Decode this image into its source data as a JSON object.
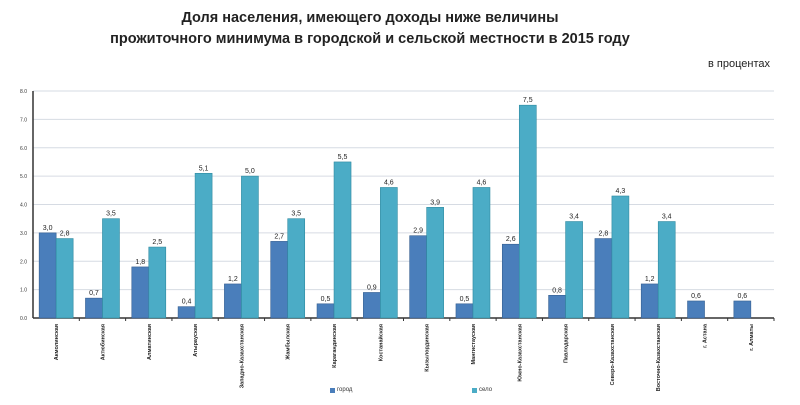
{
  "chart_data": {
    "type": "bar",
    "title": "Доля населения, имеющего доходы ниже величины",
    "subtitle": "прожиточного минимума  в городской  и сельской  местности  в 2015 году",
    "unit_label": "в процентах",
    "ylim": [
      0,
      8
    ],
    "yticks": [
      "0.0",
      "1.0",
      "2.0",
      "3.0",
      "4.0",
      "5.0",
      "6.0",
      "7.0",
      "8.0"
    ],
    "categories": [
      "Акмолинская",
      "Актюбинская",
      "Алматинская",
      "Атырауская",
      "Западно-Казахстанская",
      "Жамбылская",
      "Карагандинская",
      "Костанайская",
      "Кызылординская",
      "Мангистауская",
      "Южно-Казахстанская",
      "Павлодарская",
      "Северо-Казахстанская",
      "Восточно-Казахстанская",
      "г. Астана",
      "г. Алматы"
    ],
    "series": [
      {
        "name": "город",
        "color": "#4a7ebb",
        "values": [
          3.0,
          0.7,
          1.8,
          0.4,
          1.2,
          2.7,
          0.5,
          0.9,
          2.9,
          0.5,
          2.6,
          0.8,
          2.8,
          1.2,
          0.6,
          0.6
        ]
      },
      {
        "name": "село",
        "color": "#4bacc6",
        "values": [
          2.8,
          3.5,
          2.5,
          5.1,
          5.0,
          3.5,
          5.5,
          4.6,
          3.9,
          4.6,
          7.5,
          3.4,
          4.3,
          3.4,
          null,
          null
        ]
      }
    ],
    "grid": true,
    "legend": "bottom"
  }
}
